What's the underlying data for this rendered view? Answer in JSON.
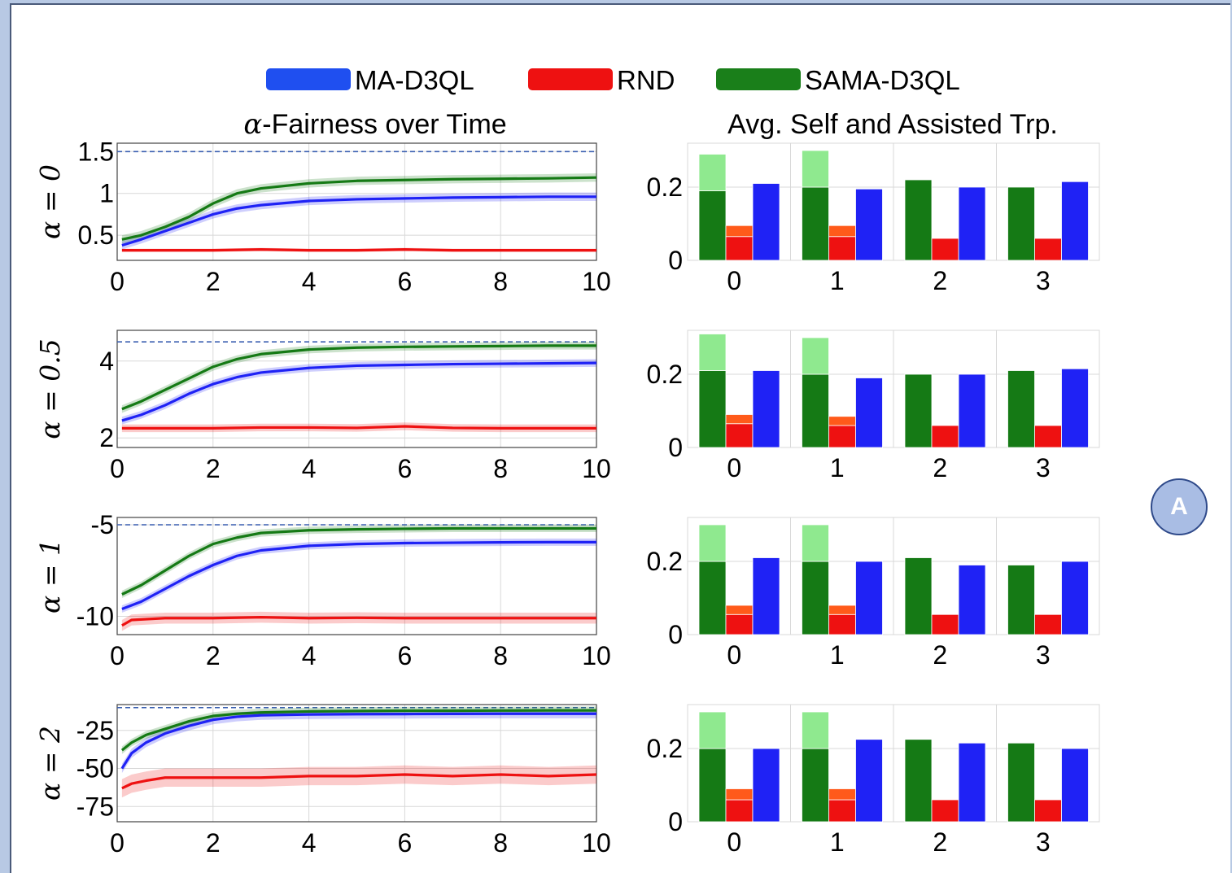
{
  "legend": {
    "items": [
      {
        "label": "MA-D3QL",
        "color": "#1f4ff0"
      },
      {
        "label": "RND",
        "color": "#ee1111"
      },
      {
        "label": "SAMA-D3QL",
        "color": "#1a7f1a"
      }
    ]
  },
  "titles": {
    "left_prefix": "α",
    "left_rest": "-Fairness over Time",
    "right": "Avg. Self and Assisted Trp."
  },
  "badge": {
    "label": "A"
  },
  "colors": {
    "ma": "#1f22f5",
    "rnd": "#ee1111",
    "sama": "#157a15",
    "sama_light": "#8fe98f",
    "rnd_light": "#ff5a1a",
    "ref": "#3a5fb0"
  },
  "chart_data": [
    {
      "type": "line",
      "row_label": "α = 0",
      "xlim": [
        0,
        10
      ],
      "x_ticks": [
        "0",
        "2",
        "4",
        "6",
        "8",
        "10"
      ],
      "ylim": [
        0.2,
        1.6
      ],
      "y_ticks": [
        {
          "v": 1.5,
          "t": "1.5"
        },
        {
          "v": 1,
          "t": "1"
        },
        {
          "v": 0.5,
          "t": "0.5"
        }
      ],
      "reference_line": 1.5,
      "series": [
        {
          "name": "MA-D3QL",
          "x": [
            0.1,
            0.5,
            1,
            1.5,
            2,
            2.5,
            3,
            4,
            5,
            6,
            7,
            8,
            9,
            10
          ],
          "y": [
            0.38,
            0.45,
            0.55,
            0.65,
            0.75,
            0.82,
            0.86,
            0.91,
            0.93,
            0.94,
            0.95,
            0.955,
            0.96,
            0.96
          ],
          "band": 0.05
        },
        {
          "name": "RND",
          "x": [
            0.1,
            1,
            2,
            3,
            4,
            5,
            6,
            7,
            8,
            9,
            10
          ],
          "y": [
            0.32,
            0.32,
            0.32,
            0.33,
            0.32,
            0.32,
            0.33,
            0.32,
            0.32,
            0.32,
            0.32
          ],
          "band": 0.02
        },
        {
          "name": "SAMA-D3QL",
          "x": [
            0.1,
            0.5,
            1,
            1.5,
            2,
            2.5,
            3,
            4,
            5,
            6,
            7,
            8,
            9,
            10
          ],
          "y": [
            0.45,
            0.5,
            0.6,
            0.72,
            0.88,
            1.0,
            1.06,
            1.12,
            1.15,
            1.16,
            1.17,
            1.175,
            1.18,
            1.19
          ],
          "band": 0.05
        }
      ]
    },
    {
      "type": "bar",
      "row_label": "α = 0",
      "categories": [
        "0",
        "1",
        "2",
        "3"
      ],
      "ylim": [
        0,
        0.32
      ],
      "y_ticks": [
        {
          "v": 0.2,
          "t": "0.2"
        },
        {
          "v": 0,
          "t": "0"
        }
      ],
      "series": [
        {
          "name": "SAMA-D3QL",
          "self": [
            0.19,
            0.2,
            0.22,
            0.2
          ],
          "assisted": [
            0.1,
            0.1,
            0,
            0
          ]
        },
        {
          "name": "RND",
          "self": [
            0.065,
            0.065,
            0.06,
            0.06
          ],
          "assisted": [
            0.03,
            0.03,
            0,
            0
          ]
        },
        {
          "name": "MA-D3QL",
          "self": [
            0.21,
            0.195,
            0.2,
            0.215
          ],
          "assisted": [
            0,
            0,
            0,
            0
          ]
        }
      ]
    },
    {
      "type": "line",
      "row_label": "α = 0.5",
      "xlim": [
        0,
        10
      ],
      "x_ticks": [
        "0",
        "2",
        "4",
        "6",
        "8",
        "10"
      ],
      "ylim": [
        1.75,
        4.8
      ],
      "y_ticks": [
        {
          "v": 4,
          "t": "4"
        },
        {
          "v": 2,
          "t": "2"
        }
      ],
      "reference_line": 4.5,
      "series": [
        {
          "name": "MA-D3QL",
          "x": [
            0.1,
            0.5,
            1,
            1.5,
            2,
            2.5,
            3,
            4,
            5,
            6,
            7,
            8,
            9,
            10
          ],
          "y": [
            2.45,
            2.6,
            2.85,
            3.15,
            3.4,
            3.58,
            3.7,
            3.82,
            3.88,
            3.9,
            3.92,
            3.93,
            3.94,
            3.95
          ],
          "band": 0.1
        },
        {
          "name": "RND",
          "x": [
            0.1,
            1,
            2,
            3,
            4,
            5,
            6,
            7,
            8,
            9,
            10
          ],
          "y": [
            2.25,
            2.25,
            2.25,
            2.27,
            2.27,
            2.26,
            2.3,
            2.26,
            2.25,
            2.25,
            2.25
          ],
          "band": 0.1
        },
        {
          "name": "SAMA-D3QL",
          "x": [
            0.1,
            0.5,
            1,
            1.5,
            2,
            2.5,
            3,
            4,
            5,
            6,
            7,
            8,
            9,
            10
          ],
          "y": [
            2.75,
            2.95,
            3.25,
            3.55,
            3.85,
            4.05,
            4.18,
            4.3,
            4.35,
            4.37,
            4.38,
            4.39,
            4.4,
            4.4
          ],
          "band": 0.1
        }
      ]
    },
    {
      "type": "bar",
      "row_label": "α = 0.5",
      "categories": [
        "0",
        "1",
        "2",
        "3"
      ],
      "ylim": [
        0,
        0.32
      ],
      "y_ticks": [
        {
          "v": 0.2,
          "t": "0.2"
        },
        {
          "v": 0,
          "t": "0"
        }
      ],
      "series": [
        {
          "name": "SAMA-D3QL",
          "self": [
            0.21,
            0.2,
            0.2,
            0.21
          ],
          "assisted": [
            0.1,
            0.1,
            0,
            0
          ]
        },
        {
          "name": "RND",
          "self": [
            0.065,
            0.06,
            0.06,
            0.06
          ],
          "assisted": [
            0.025,
            0.025,
            0,
            0
          ]
        },
        {
          "name": "MA-D3QL",
          "self": [
            0.21,
            0.19,
            0.2,
            0.215
          ],
          "assisted": [
            0,
            0,
            0,
            0
          ]
        }
      ]
    },
    {
      "type": "line",
      "row_label": "α = 1",
      "xlim": [
        0,
        10
      ],
      "x_ticks": [
        "0",
        "2",
        "4",
        "6",
        "8",
        "10"
      ],
      "ylim": [
        -11,
        -4.6
      ],
      "y_ticks": [
        {
          "v": -5,
          "t": "-5"
        },
        {
          "v": -10,
          "t": "-10"
        }
      ],
      "reference_line": -5,
      "series": [
        {
          "name": "MA-D3QL",
          "x": [
            0.1,
            0.5,
            1,
            1.5,
            2,
            2.5,
            3,
            4,
            5,
            6,
            7,
            8,
            9,
            10
          ],
          "y": [
            -9.6,
            -9.2,
            -8.5,
            -7.8,
            -7.2,
            -6.7,
            -6.4,
            -6.15,
            -6.05,
            -6.0,
            -5.98,
            -5.96,
            -5.95,
            -5.95
          ],
          "band": 0.2
        },
        {
          "name": "RND",
          "x": [
            0.1,
            0.3,
            1,
            2,
            3,
            4,
            5,
            6,
            7,
            8,
            9,
            10
          ],
          "y": [
            -10.5,
            -10.2,
            -10.1,
            -10.1,
            -10.05,
            -10.1,
            -10.08,
            -10.1,
            -10.1,
            -10.1,
            -10.1,
            -10.1
          ],
          "band": 0.3
        },
        {
          "name": "SAMA-D3QL",
          "x": [
            0.1,
            0.5,
            1,
            1.5,
            2,
            2.5,
            3,
            4,
            5,
            6,
            7,
            8,
            9,
            10
          ],
          "y": [
            -8.8,
            -8.3,
            -7.5,
            -6.7,
            -6.05,
            -5.7,
            -5.45,
            -5.3,
            -5.25,
            -5.22,
            -5.2,
            -5.2,
            -5.2,
            -5.2
          ],
          "band": 0.2
        }
      ]
    },
    {
      "type": "bar",
      "row_label": "α = 1",
      "categories": [
        "0",
        "1",
        "2",
        "3"
      ],
      "ylim": [
        0,
        0.32
      ],
      "y_ticks": [
        {
          "v": 0.2,
          "t": "0.2"
        },
        {
          "v": 0,
          "t": "0"
        }
      ],
      "series": [
        {
          "name": "SAMA-D3QL",
          "self": [
            0.2,
            0.2,
            0.21,
            0.19
          ],
          "assisted": [
            0.1,
            0.1,
            0,
            0
          ]
        },
        {
          "name": "RND",
          "self": [
            0.055,
            0.055,
            0.055,
            0.055
          ],
          "assisted": [
            0.025,
            0.025,
            0,
            0
          ]
        },
        {
          "name": "MA-D3QL",
          "self": [
            0.21,
            0.2,
            0.19,
            0.2
          ],
          "assisted": [
            0,
            0,
            0,
            0
          ]
        }
      ]
    },
    {
      "type": "line",
      "row_label": "α = 2",
      "xlim": [
        0,
        10
      ],
      "x_ticks": [
        "0",
        "2",
        "4",
        "6",
        "8",
        "10"
      ],
      "ylim": [
        -85,
        -8
      ],
      "y_ticks": [
        {
          "v": -25,
          "t": "-25"
        },
        {
          "v": -50,
          "t": "-50"
        },
        {
          "v": -75,
          "t": "-75"
        }
      ],
      "reference_line": -10,
      "series": [
        {
          "name": "MA-D3QL",
          "x": [
            0.1,
            0.3,
            0.6,
            1,
            1.5,
            2,
            2.5,
            3,
            4,
            5,
            6,
            7,
            8,
            9,
            10
          ],
          "y": [
            -50,
            -40,
            -33,
            -27,
            -22,
            -18,
            -16,
            -15,
            -14.5,
            -14.3,
            -14.2,
            -14.1,
            -14,
            -14,
            -14
          ],
          "band": 3
        },
        {
          "name": "RND",
          "x": [
            0.1,
            0.3,
            0.6,
            1,
            2,
            3,
            4,
            5,
            6,
            7,
            8,
            9,
            10
          ],
          "y": [
            -63,
            -60,
            -58,
            -56,
            -56,
            -56,
            -55,
            -55,
            -54,
            -55,
            -54,
            -55,
            -54
          ],
          "band": 6
        },
        {
          "name": "SAMA-D3QL",
          "x": [
            0.1,
            0.3,
            0.6,
            1,
            1.5,
            2,
            2.5,
            3,
            4,
            5,
            6,
            7,
            8,
            9,
            10
          ],
          "y": [
            -38,
            -33,
            -28,
            -24,
            -19,
            -15.5,
            -14,
            -13.2,
            -12.5,
            -12.2,
            -12,
            -12,
            -11.9,
            -11.8,
            -11.8
          ],
          "band": 2.5
        }
      ]
    },
    {
      "type": "bar",
      "row_label": "α = 2",
      "categories": [
        "0",
        "1",
        "2",
        "3"
      ],
      "ylim": [
        0,
        0.32
      ],
      "y_ticks": [
        {
          "v": 0.2,
          "t": "0.2"
        },
        {
          "v": 0,
          "t": "0"
        }
      ],
      "series": [
        {
          "name": "SAMA-D3QL",
          "self": [
            0.2,
            0.2,
            0.225,
            0.215
          ],
          "assisted": [
            0.1,
            0.1,
            0,
            0
          ]
        },
        {
          "name": "RND",
          "self": [
            0.06,
            0.06,
            0.06,
            0.06
          ],
          "assisted": [
            0.03,
            0.03,
            0,
            0
          ]
        },
        {
          "name": "MA-D3QL",
          "self": [
            0.2,
            0.225,
            0.215,
            0.2
          ],
          "assisted": [
            0,
            0,
            0,
            0
          ]
        }
      ]
    }
  ]
}
